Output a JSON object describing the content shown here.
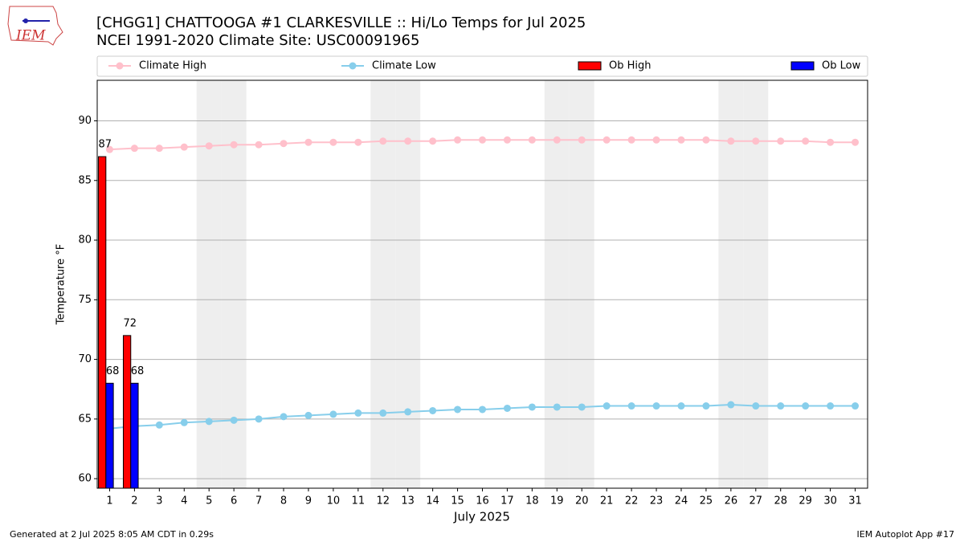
{
  "chart_data": {
    "type": "line",
    "title": "[CHGG1] CHATTOOGA #1 CLARKESVILLE :: Hi/Lo Temps for Jul 2025",
    "subtitle": "NCEI 1991-2020 Climate Site: USC00091965",
    "x_label": "July 2025",
    "y_label": "Temperature °F",
    "logo_text": "IEM",
    "footer_left": "Generated at 2 Jul 2025 8:05 AM CDT in 0.29s",
    "footer_right": "IEM Autoplot App #17",
    "x": [
      1,
      2,
      3,
      4,
      5,
      6,
      7,
      8,
      9,
      10,
      11,
      12,
      13,
      14,
      15,
      16,
      17,
      18,
      19,
      20,
      21,
      22,
      23,
      24,
      25,
      26,
      27,
      28,
      29,
      30,
      31
    ],
    "xlim": [
      0.5,
      31.5
    ],
    "xticks": [
      1,
      2,
      3,
      4,
      5,
      6,
      7,
      8,
      9,
      10,
      11,
      12,
      13,
      14,
      15,
      16,
      17,
      18,
      19,
      20,
      21,
      22,
      23,
      24,
      25,
      26,
      27,
      28,
      29,
      30,
      31
    ],
    "ylim": [
      59.2,
      93.4
    ],
    "yticks": [
      60,
      65,
      70,
      75,
      80,
      85,
      90
    ],
    "grid": true,
    "shaded_days": [
      5,
      6,
      12,
      13,
      19,
      20,
      26,
      27
    ],
    "shade_color": "#eeeeee",
    "legend": "top",
    "series": [
      {
        "name": "Climate High",
        "type": "line",
        "color": "#ffc0cb",
        "values": [
          87.6,
          87.7,
          87.7,
          87.8,
          87.9,
          88.0,
          88.0,
          88.1,
          88.2,
          88.2,
          88.2,
          88.3,
          88.3,
          88.3,
          88.4,
          88.4,
          88.4,
          88.4,
          88.4,
          88.4,
          88.4,
          88.4,
          88.4,
          88.4,
          88.4,
          88.3,
          88.3,
          88.3,
          88.3,
          88.2,
          88.2
        ]
      },
      {
        "name": "Climate Low",
        "type": "line",
        "color": "#87ceeb",
        "values": [
          64.2,
          64.4,
          64.5,
          64.7,
          64.8,
          64.9,
          65.0,
          65.2,
          65.3,
          65.4,
          65.5,
          65.5,
          65.6,
          65.7,
          65.8,
          65.8,
          65.9,
          66.0,
          66.0,
          66.0,
          66.1,
          66.1,
          66.1,
          66.1,
          66.1,
          66.2,
          66.1,
          66.1,
          66.1,
          66.1,
          66.1
        ]
      },
      {
        "name": "Ob High",
        "type": "bar",
        "color": "#ff0000",
        "values": [
          87,
          72,
          null,
          null,
          null,
          null,
          null,
          null,
          null,
          null,
          null,
          null,
          null,
          null,
          null,
          null,
          null,
          null,
          null,
          null,
          null,
          null,
          null,
          null,
          null,
          null,
          null,
          null,
          null,
          null,
          null
        ]
      },
      {
        "name": "Ob Low",
        "type": "bar",
        "color": "#0000ff",
        "values": [
          68,
          68,
          null,
          null,
          null,
          null,
          null,
          null,
          null,
          null,
          null,
          null,
          null,
          null,
          null,
          null,
          null,
          null,
          null,
          null,
          null,
          null,
          null,
          null,
          null,
          null,
          null,
          null,
          null,
          null,
          null
        ]
      }
    ]
  }
}
